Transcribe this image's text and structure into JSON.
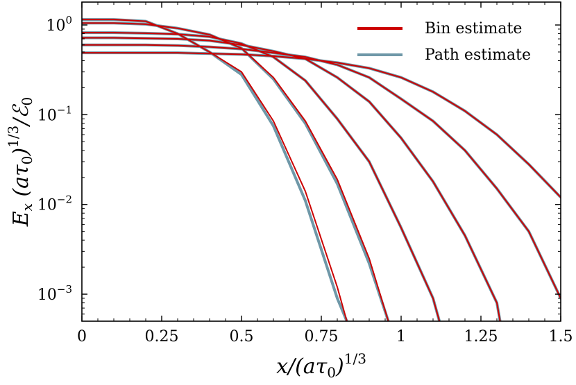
{
  "chart_data": {
    "type": "line",
    "xlabel": "x/(aτ0)^1/3",
    "ylabel": "Ex(aτ0)^1/3/ℰ0",
    "x_scale": "linear",
    "y_scale": "log",
    "xlim": [
      0,
      1.5
    ],
    "ylim": [
      0.0005,
      1.8
    ],
    "x_ticks": [
      {
        "value": 0,
        "label": "0"
      },
      {
        "value": 0.25,
        "label": "0.25"
      },
      {
        "value": 0.5,
        "label": "0.5"
      },
      {
        "value": 0.75,
        "label": "0.75"
      },
      {
        "value": 1.0,
        "label": "1"
      },
      {
        "value": 1.25,
        "label": "1.25"
      },
      {
        "value": 1.5,
        "label": "1.5"
      }
    ],
    "y_ticks": [
      {
        "value": 1,
        "label": "10^0"
      },
      {
        "value": 0.1,
        "label": "10^−1"
      },
      {
        "value": 0.01,
        "label": "10^−2"
      },
      {
        "value": 0.001,
        "label": "10^−3"
      }
    ],
    "grid": false,
    "legend": {
      "position": "top-right",
      "entries": [
        {
          "label": "Bin estimate",
          "color": "#cc0000"
        },
        {
          "label": "Path estimate",
          "color": "#6f98a8"
        }
      ]
    },
    "series": [
      {
        "estimate": "Bin estimate",
        "color": "#cc0000",
        "x": [
          0,
          0.1,
          0.2,
          0.3,
          0.4,
          0.5,
          0.6,
          0.7,
          0.8,
          0.83
        ],
        "y": [
          1.15,
          1.15,
          1.1,
          0.8,
          0.5,
          0.3,
          0.085,
          0.014,
          0.0012,
          0.0005
        ]
      },
      {
        "estimate": "Bin estimate",
        "color": "#cc0000",
        "x": [
          0,
          0.1,
          0.2,
          0.3,
          0.4,
          0.5,
          0.6,
          0.7,
          0.8,
          0.9,
          0.96
        ],
        "y": [
          1.05,
          1.05,
          1.02,
          0.92,
          0.78,
          0.55,
          0.26,
          0.085,
          0.019,
          0.0025,
          0.0005
        ]
      },
      {
        "estimate": "Bin estimate",
        "color": "#cc0000",
        "x": [
          0,
          0.1,
          0.2,
          0.3,
          0.4,
          0.5,
          0.6,
          0.7,
          0.8,
          0.9,
          1.0,
          1.1,
          1.12
        ],
        "y": [
          0.82,
          0.82,
          0.81,
          0.79,
          0.74,
          0.62,
          0.44,
          0.24,
          0.09,
          0.03,
          0.0055,
          0.0009,
          0.0005
        ]
      },
      {
        "estimate": "Bin estimate",
        "color": "#cc0000",
        "x": [
          0,
          0.1,
          0.2,
          0.3,
          0.4,
          0.5,
          0.6,
          0.7,
          0.8,
          0.9,
          1.0,
          1.1,
          1.2,
          1.3,
          1.31
        ],
        "y": [
          0.72,
          0.72,
          0.71,
          0.7,
          0.67,
          0.6,
          0.51,
          0.42,
          0.26,
          0.14,
          0.055,
          0.018,
          0.0045,
          0.0008,
          0.0005
        ]
      },
      {
        "estimate": "Bin estimate",
        "color": "#cc0000",
        "x": [
          0,
          0.1,
          0.2,
          0.3,
          0.4,
          0.5,
          0.6,
          0.7,
          0.8,
          0.9,
          1.0,
          1.1,
          1.2,
          1.3,
          1.4,
          1.5
        ],
        "y": [
          0.6,
          0.6,
          0.6,
          0.59,
          0.57,
          0.54,
          0.49,
          0.44,
          0.36,
          0.26,
          0.15,
          0.085,
          0.04,
          0.015,
          0.005,
          0.0009
        ]
      },
      {
        "estimate": "Bin estimate",
        "color": "#cc0000",
        "x": [
          0,
          0.1,
          0.2,
          0.3,
          0.4,
          0.5,
          0.6,
          0.7,
          0.8,
          0.9,
          1.0,
          1.1,
          1.2,
          1.3,
          1.4,
          1.5
        ],
        "y": [
          0.49,
          0.49,
          0.49,
          0.49,
          0.48,
          0.47,
          0.45,
          0.42,
          0.38,
          0.33,
          0.26,
          0.18,
          0.11,
          0.06,
          0.028,
          0.012
        ]
      },
      {
        "estimate": "Path estimate",
        "color": "#6f98a8",
        "x": [
          0,
          0.1,
          0.2,
          0.3,
          0.4,
          0.5,
          0.6,
          0.7,
          0.8,
          0.83
        ],
        "y": [
          1.15,
          1.15,
          1.1,
          0.8,
          0.5,
          0.28,
          0.075,
          0.011,
          0.0009,
          0.0005
        ]
      },
      {
        "estimate": "Path estimate",
        "color": "#6f98a8",
        "x": [
          0,
          0.1,
          0.2,
          0.3,
          0.4,
          0.5,
          0.6,
          0.7,
          0.8,
          0.9,
          0.96
        ],
        "y": [
          1.05,
          1.05,
          1.02,
          0.92,
          0.78,
          0.55,
          0.25,
          0.08,
          0.017,
          0.0022,
          0.0005
        ]
      },
      {
        "estimate": "Path estimate",
        "color": "#6f98a8",
        "x": [
          0,
          0.1,
          0.2,
          0.3,
          0.4,
          0.5,
          0.6,
          0.7,
          0.8,
          0.9,
          1.0,
          1.1,
          1.12
        ],
        "y": [
          0.82,
          0.82,
          0.81,
          0.79,
          0.74,
          0.62,
          0.44,
          0.24,
          0.09,
          0.03,
          0.0055,
          0.0009,
          0.0005
        ]
      },
      {
        "estimate": "Path estimate",
        "color": "#6f98a8",
        "x": [
          0,
          0.1,
          0.2,
          0.3,
          0.4,
          0.5,
          0.6,
          0.7,
          0.8,
          0.9,
          1.0,
          1.1,
          1.2,
          1.3,
          1.31
        ],
        "y": [
          0.72,
          0.72,
          0.71,
          0.7,
          0.67,
          0.6,
          0.51,
          0.42,
          0.26,
          0.14,
          0.055,
          0.018,
          0.0045,
          0.0008,
          0.0005
        ]
      },
      {
        "estimate": "Path estimate",
        "color": "#6f98a8",
        "x": [
          0,
          0.1,
          0.2,
          0.3,
          0.4,
          0.5,
          0.6,
          0.7,
          0.8,
          0.9,
          1.0,
          1.1,
          1.2,
          1.3,
          1.4,
          1.5
        ],
        "y": [
          0.6,
          0.6,
          0.6,
          0.59,
          0.57,
          0.54,
          0.49,
          0.44,
          0.36,
          0.26,
          0.15,
          0.085,
          0.04,
          0.015,
          0.005,
          0.0009
        ]
      },
      {
        "estimate": "Path estimate",
        "color": "#6f98a8",
        "x": [
          0,
          0.1,
          0.2,
          0.3,
          0.4,
          0.5,
          0.6,
          0.7,
          0.8,
          0.9,
          1.0,
          1.1,
          1.2,
          1.3,
          1.4,
          1.5
        ],
        "y": [
          0.49,
          0.49,
          0.49,
          0.49,
          0.48,
          0.47,
          0.45,
          0.42,
          0.38,
          0.33,
          0.26,
          0.18,
          0.11,
          0.06,
          0.028,
          0.012
        ]
      }
    ]
  }
}
